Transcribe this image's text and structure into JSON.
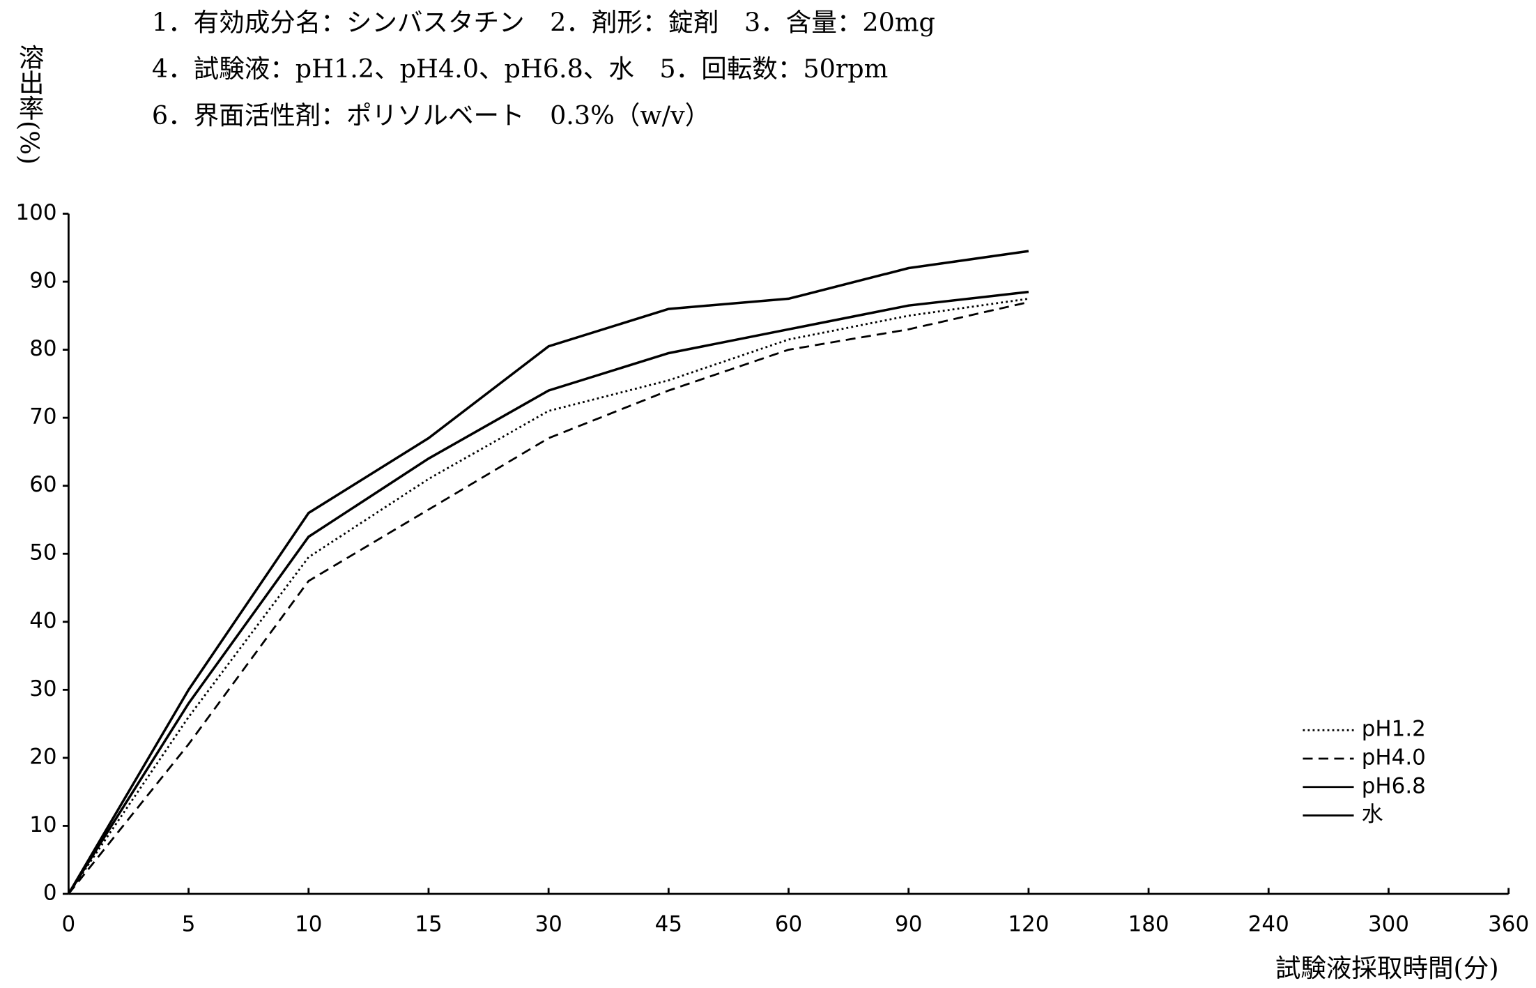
{
  "chart_data": {
    "type": "line",
    "title_lines": [
      "1．有効成分名：シンバスタチン　2．剤形：錠剤　3．含量：20mg",
      "4．試験液：pH1.2、pH4.0、pH6.8、水　5．回転数：50rpm",
      "6．界面活性剤：ポリソルベート　0.3%（w/v）"
    ],
    "y_label": "溶出率(%)",
    "x_label": "試験液採取時間(分)",
    "categories": [
      "0",
      "5",
      "10",
      "15",
      "30",
      "45",
      "60",
      "90",
      "120",
      "180",
      "240",
      "300",
      "360"
    ],
    "series": [
      {
        "name": "pH1.2",
        "color": "#000",
        "dash": "dotted",
        "values": [
          0,
          26,
          49.5,
          61,
          71,
          75.5,
          81.5,
          85,
          87.5,
          null,
          null,
          null,
          null
        ]
      },
      {
        "name": "pH4.0",
        "color": "#000",
        "dash": "dashed",
        "values": [
          0,
          22,
          46,
          56.5,
          67,
          74,
          80,
          83,
          87,
          null,
          null,
          null,
          null
        ]
      },
      {
        "name": "pH6.8",
        "color": "#000",
        "dash": "solid",
        "values": [
          0,
          28,
          52.5,
          64,
          74,
          79.5,
          83,
          86.5,
          88.5,
          null,
          null,
          null,
          null
        ]
      },
      {
        "name": "水",
        "color": "#000",
        "dash": "solid",
        "values": [
          0,
          30,
          56,
          67,
          80.5,
          86,
          87.5,
          92,
          94.5,
          null,
          null,
          null,
          null
        ]
      }
    ],
    "ylim": [
      0,
      100
    ],
    "yticks": [
      0,
      10,
      20,
      30,
      40,
      50,
      60,
      70,
      80,
      90,
      100
    ],
    "legend": "lower right"
  }
}
